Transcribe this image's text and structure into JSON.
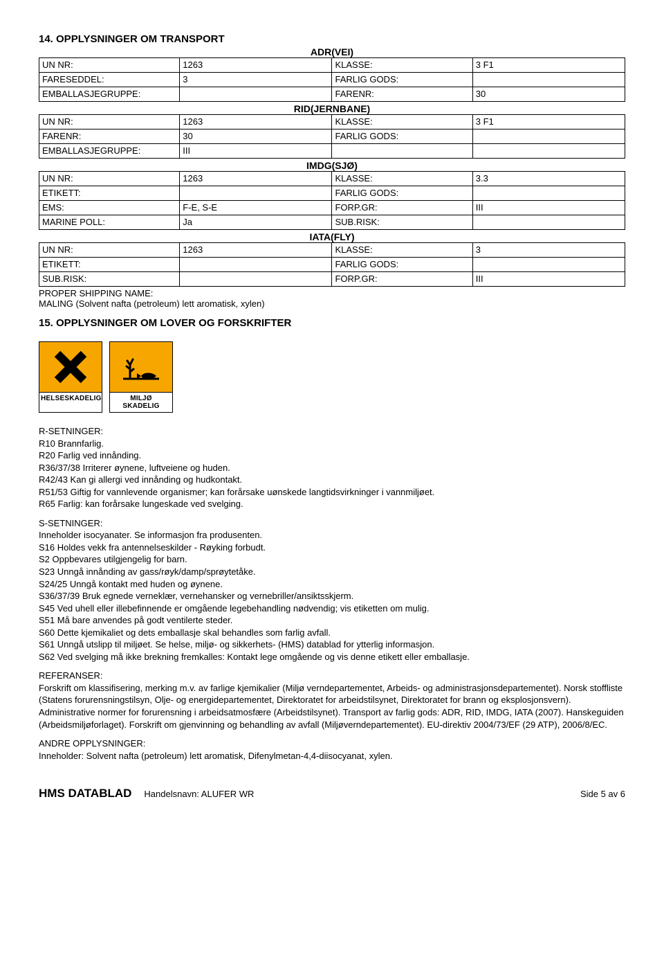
{
  "section14": {
    "title": "14. OPPLYSNINGER OM TRANSPORT",
    "adr": {
      "heading": "ADR(VEI)",
      "rows": [
        [
          "UN NR:",
          "1263",
          "KLASSE:",
          "3 F1"
        ],
        [
          "FARESEDDEL:",
          "3",
          "FARLIG GODS:",
          ""
        ],
        [
          "EMBALLASJEGRUPPE:",
          "",
          "FARENR:",
          "30"
        ]
      ]
    },
    "rid": {
      "heading": "RID(JERNBANE)",
      "rows": [
        [
          "UN NR:",
          "1263",
          "KLASSE:",
          "3 F1"
        ],
        [
          "FARENR:",
          "30",
          "FARLIG GODS:",
          ""
        ],
        [
          "EMBALLASJEGRUPPE:",
          "III",
          "",
          ""
        ]
      ]
    },
    "imdg": {
      "heading": "IMDG(SJØ)",
      "rows": [
        [
          "UN NR:",
          "1263",
          "KLASSE:",
          "3.3"
        ],
        [
          "ETIKETT:",
          "",
          "FARLIG GODS:",
          ""
        ],
        [
          "EMS:",
          "F-E, S-E",
          "FORP.GR:",
          "III"
        ],
        [
          "MARINE POLL:",
          "Ja",
          "SUB.RISK:",
          ""
        ]
      ]
    },
    "iata": {
      "heading": "IATA(FLY)",
      "rows": [
        [
          "UN NR:",
          "1263",
          "KLASSE:",
          "3"
        ],
        [
          "ETIKETT:",
          "",
          "FARLIG GODS:",
          ""
        ],
        [
          "SUB.RISK:",
          "",
          "FORP.GR:",
          "III"
        ]
      ]
    },
    "proper_label": "PROPER SHIPPING NAME:",
    "proper_value": "MALING (Solvent nafta (petroleum) lett aromatisk, xylen)"
  },
  "section15": {
    "title": "15. OPPLYSNINGER OM LOVER OG FORSKRIFTER",
    "pictos": [
      {
        "label": "HELSESKADELIG",
        "kind": "x"
      },
      {
        "label": "MILJØ SKADELIG",
        "kind": "env"
      }
    ],
    "r_head": "R-SETNINGER:",
    "r": [
      "R10 Brannfarlig.",
      "R20 Farlig ved innånding.",
      "R36/37/38 Irriterer øynene, luftveiene og huden.",
      "R42/43 Kan gi allergi ved innånding og hudkontakt.",
      "R51/53 Giftig for vannlevende organismer; kan forårsake uønskede langtidsvirkninger i vannmiljøet.",
      "R65 Farlig: kan forårsake lungeskade ved svelging."
    ],
    "s_head": "S-SETNINGER:",
    "s": [
      "Inneholder isocyanater. Se informasjon fra produsenten.",
      "S16 Holdes vekk fra antennelseskilder - Røyking forbudt.",
      "S2 Oppbevares utilgjengelig for barn.",
      "S23 Unngå innånding av gass/røyk/damp/sprøytetåke.",
      "S24/25 Unngå kontakt med huden og øynene.",
      "S36/37/39 Bruk egnede verneklær, vernehansker og vernebriller/ansiktsskjerm.",
      "S45 Ved uhell eller illebefinnende er omgående legebehandling nødvendig; vis etiketten om mulig.",
      "S51 Må bare anvendes på godt ventilerte steder.",
      "S60 Dette kjemikaliet og dets emballasje skal behandles som farlig avfall.",
      "S61 Unngå utslipp til miljøet. Se helse, miljø- og sikkerhets- (HMS) datablad for ytterlig informasjon.",
      "S62 Ved svelging må ikke brekning fremkalles: Kontakt lege omgående og vis denne etikett eller emballasje."
    ],
    "ref_head": "REFERANSER:",
    "ref": "Forskrift om klassifisering, merking m.v. av farlige kjemikalier (Miljø verndepartementet, Arbeids- og administrasjonsdepartementet). Norsk stoffliste (Statens forurensningstilsyn, Olje- og energidepartementet, Direktoratet for arbeidstilsynet, Direktoratet for brann og eksplosjonsvern). Administrative normer for forurensning i arbeidsatmosfære (Arbeidstilsynet). Transport av farlig gods: ADR, RID, IMDG, IATA (2007). Hanskeguiden (Arbeidsmiljøforlaget). Forskrift om gjenvinning og behandling av avfall (Miljøverndepartementet). EU-direktiv 2004/73/EF (29 ATP), 2006/8/EC.",
    "other_head": "ANDRE OPPLYSNINGER:",
    "other": "Inneholder: Solvent nafta (petroleum) lett aromatisk, Difenylmetan-4,4-diisocyanat, xylen."
  },
  "footer": {
    "brand": "HMS DATABLAD",
    "product_label": "Handelsnavn: ALUFER WR",
    "page": "Side 5 av 6"
  },
  "colors": {
    "picto_bg": "#f7a600",
    "text": "#000000",
    "page_bg": "#ffffff"
  }
}
